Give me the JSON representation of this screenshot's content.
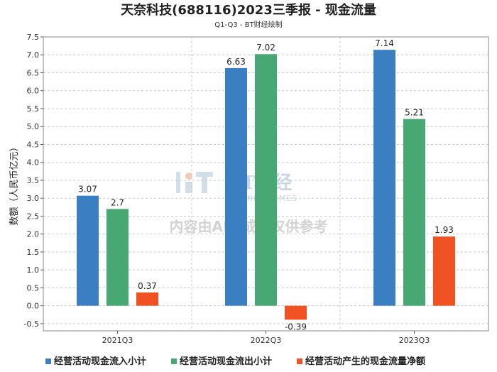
{
  "chart_data": {
    "type": "bar",
    "title": "天奈科技(688116)2023三季报 - 现金流量",
    "subtitle": "Q1-Q3 - BT财经绘制",
    "ylabel": "数额（人民币亿元）",
    "xlabel": "",
    "categories": [
      "2021Q3",
      "2022Q3",
      "2023Q3"
    ],
    "ylim": [
      -0.7,
      7.5
    ],
    "yticks": [
      -0.5,
      0.0,
      0.5,
      1.0,
      1.5,
      2.0,
      2.5,
      3.0,
      3.5,
      4.0,
      4.5,
      5.0,
      5.5,
      6.0,
      6.5,
      7.0,
      7.5
    ],
    "grid": true,
    "legend_position": "bottom",
    "series": [
      {
        "name": "经营活动现金流入小计",
        "color": "#3a7fc1",
        "values": [
          3.07,
          6.63,
          7.14
        ],
        "labels": [
          "3.07",
          "6.63",
          "7.14"
        ]
      },
      {
        "name": "经营活动现金流出小计",
        "color": "#47a873",
        "values": [
          2.7,
          7.02,
          5.21
        ],
        "labels": [
          "2.7",
          "7.02",
          "5.21"
        ]
      },
      {
        "name": "经营活动产生的现金流量净额",
        "color": "#f05224",
        "values": [
          0.37,
          -0.39,
          1.93
        ],
        "labels": [
          "0.37",
          "-0.39",
          "1.93"
        ]
      }
    ]
  },
  "watermark": {
    "brand": "BT财经",
    "brand_sub": "BUSINESSTIMES",
    "notice": "内容由AI生成，仅供参考"
  }
}
